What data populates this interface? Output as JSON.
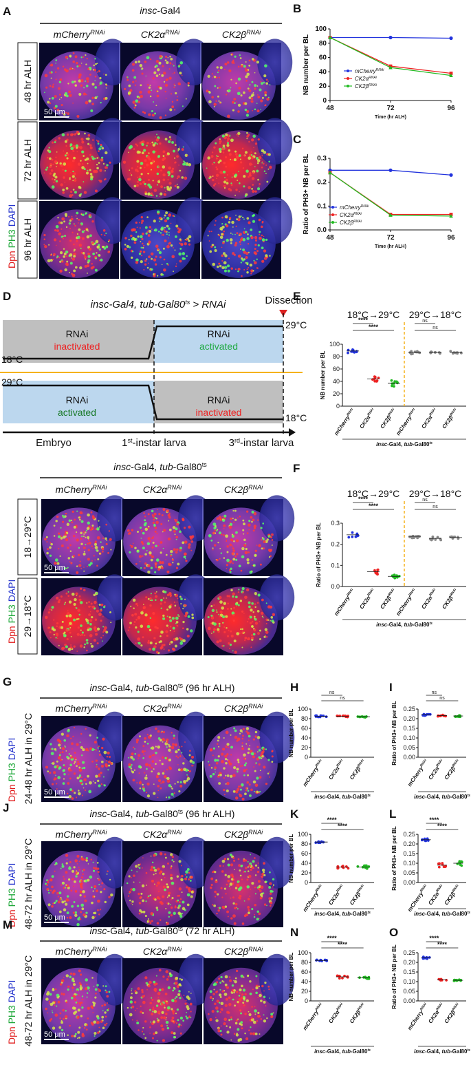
{
  "panels": {
    "A": {
      "letter": "A",
      "title_gene": "insc",
      "title_rest": "-Gal4",
      "columns": [
        {
          "gene": "mCherry",
          "sup": "RNAi"
        },
        {
          "gene": "CK2α",
          "sup": "RNAi"
        },
        {
          "gene": "CK2β",
          "sup": "RNAi"
        }
      ],
      "rows": [
        "48 hr ALH",
        "72 hr ALH",
        "96 hr ALH"
      ],
      "scale": "50 μm",
      "stain": {
        "dpn": "Dpn",
        "ph3": "PH3",
        "dapi": "DAPI"
      }
    },
    "B": {
      "letter": "B"
    },
    "C": {
      "letter": "C"
    },
    "D": {
      "letter": "D",
      "title": "insc-Gal4, tub-Gal80",
      "title_sup": "ts",
      "title_suffix": " > RNAi",
      "dissection": "Dissection",
      "t29": "29°C",
      "t18": "18°C",
      "rnai": "RNAi",
      "inactivated": "inactivated",
      "activated": "activated",
      "stages": {
        "embryo": "Embryo",
        "first_pre": "1",
        "first_sup": "st",
        "first_post": "-instar larva",
        "third_pre": "3",
        "third_sup": "rd",
        "third_post": "-instar larva"
      },
      "image_title_gene1": "insc",
      "image_title_mid": "-Gal4",
      "image_title_sep": ", ",
      "image_title_gene2": "tub",
      "image_title_rest": "-Gal80",
      "image_title_sup": "ts",
      "rows": [
        "18→29°C",
        "29→18°C"
      ],
      "scale": "50 μm"
    },
    "E": {
      "letter": "E"
    },
    "F": {
      "letter": "F"
    },
    "G": {
      "letter": "G",
      "title_gene1": "insc",
      "title_mid": "-Gal4, ",
      "title_gene2": "tub",
      "title_rest": "-Gal80",
      "title_sup": "ts",
      "title_tail": " (96 hr ALH)",
      "row": "24-48 hr ALH in 29°C",
      "scale": "50 μm"
    },
    "H": {
      "letter": "H"
    },
    "I": {
      "letter": "I"
    },
    "J": {
      "letter": "J",
      "title_gene1": "insc",
      "title_mid": "-Gal4, ",
      "title_gene2": "tub",
      "title_rest": "-Gal80",
      "title_sup": "ts",
      "title_tail": " (96 hr ALH)",
      "row": "48-72 hr ALH in 29°C",
      "scale": "50 μm"
    },
    "K": {
      "letter": "K"
    },
    "L": {
      "letter": "L"
    },
    "M": {
      "letter": "M",
      "title_gene1": "insc",
      "title_mid": "-Gal4, ",
      "title_gene2": "tub",
      "title_rest": "-Gal80",
      "title_sup": "ts",
      "title_tail": " (72 hr ALH)",
      "row": "48-72 hr ALH in 29°C",
      "scale": "50 μm"
    },
    "N": {
      "letter": "N"
    },
    "O": {
      "letter": "O"
    }
  },
  "colors": {
    "mcherry": "#2233dd",
    "ck2a": "#ee2222",
    "ck2b": "#22bb22",
    "shift": "#888888",
    "gray_bg": "#bfbfbf",
    "blue_bg": "#bcd7ee",
    "orange": "#f5b21b",
    "green_text": "#22aa44",
    "red_text": "#ee2222",
    "dark_green": "#1a7a2a"
  },
  "chart_data": [
    {
      "id": "B",
      "type": "line",
      "title": "",
      "xlabel": "Time (hr ALH)",
      "ylabel": "NB number per BL",
      "x": [
        48,
        72,
        96
      ],
      "xlim": [
        48,
        96
      ],
      "ylim": [
        0,
        100
      ],
      "xticks": [
        "48",
        "72",
        "96"
      ],
      "yticks": [
        "0",
        "20",
        "40",
        "60",
        "80",
        "100"
      ],
      "series": [
        {
          "name": "mCherry",
          "sup": "RNAi",
          "values": [
            88,
            88,
            87
          ]
        },
        {
          "name": "CK2α",
          "sup": "RNAi",
          "values": [
            88,
            48,
            38
          ]
        },
        {
          "name": "CK2β",
          "sup": "RNAi",
          "values": [
            88,
            46,
            35
          ]
        }
      ],
      "legend": "center-left"
    },
    {
      "id": "C",
      "type": "line",
      "title": "",
      "xlabel": "Time (hr ALH)",
      "ylabel": "Ratio of PH3+ NB per BL",
      "x": [
        48,
        72,
        96
      ],
      "xlim": [
        48,
        96
      ],
      "ylim": [
        0,
        0.3
      ],
      "xticks": [
        "48",
        "72",
        "96"
      ],
      "yticks": [
        "0.0",
        "0.1",
        "0.2",
        "0.3"
      ],
      "series": [
        {
          "name": "mCherry",
          "sup": "RNAi",
          "values": [
            0.25,
            0.25,
            0.23
          ]
        },
        {
          "name": "CK2α",
          "sup": "RNAi",
          "values": [
            0.24,
            0.065,
            0.065
          ]
        },
        {
          "name": "CK2β",
          "sup": "RNAi",
          "values": [
            0.24,
            0.062,
            0.058
          ]
        }
      ],
      "legend": "bottom-left"
    },
    {
      "id": "E",
      "type": "scatter",
      "ylabel": "NB number per BL",
      "ylim": [
        0,
        100
      ],
      "yticks": [
        "0",
        "20",
        "40",
        "60",
        "80",
        "100"
      ],
      "group_titles": [
        "18°C→29°C",
        "29°C→18°C"
      ],
      "categories": [
        "mCherry",
        "CK2α",
        "CK2β",
        "mCherry",
        "CK2α",
        "CK2β"
      ],
      "category_sup": "RNAi",
      "means": [
        89,
        44,
        37,
        87,
        87,
        87
      ],
      "spread": [
        3,
        4,
        5,
        3,
        2,
        2
      ],
      "brackets": [
        {
          "from": 0,
          "to": 1,
          "label": "****"
        },
        {
          "from": 0,
          "to": 2,
          "label": "****"
        },
        {
          "from": 3,
          "to": 4,
          "label": "ns"
        },
        {
          "from": 3,
          "to": 5,
          "label": "ns"
        }
      ],
      "footer_gene1": "insc",
      "footer_mid": "-Gal4, ",
      "footer_gene2": "tub",
      "footer_rest": "-Gal80",
      "footer_sup": "ts"
    },
    {
      "id": "F",
      "type": "scatter",
      "ylabel": "Ratio of PH3+ NB per BL",
      "ylim": [
        0,
        0.3
      ],
      "yticks": [
        "0.0",
        "0.1",
        "0.2",
        "0.3"
      ],
      "group_titles": [
        "18°C→29°C",
        "29°C→18°C"
      ],
      "categories": [
        "mCherry",
        "CK2α",
        "CK2β",
        "mCherry",
        "CK2α",
        "CK2β"
      ],
      "category_sup": "RNAi",
      "means": [
        0.245,
        0.07,
        0.048,
        0.238,
        0.228,
        0.232
      ],
      "spread": [
        0.012,
        0.012,
        0.008,
        0.008,
        0.008,
        0.005
      ],
      "brackets": [
        {
          "from": 0,
          "to": 1,
          "label": "****"
        },
        {
          "from": 0,
          "to": 2,
          "label": "****"
        },
        {
          "from": 3,
          "to": 4,
          "label": "ns"
        },
        {
          "from": 3,
          "to": 5,
          "label": "ns"
        }
      ],
      "footer_gene1": "insc",
      "footer_mid": "-Gal4, ",
      "footer_gene2": "tub",
      "footer_rest": "-Gal80",
      "footer_sup": "ts"
    },
    {
      "id": "H",
      "type": "scatter",
      "ylabel": "NB number per BL",
      "ylim": [
        0,
        100
      ],
      "yticks": [
        "0",
        "20",
        "40",
        "60",
        "80",
        "100"
      ],
      "categories": [
        "mCherry",
        "CK2α",
        "CK2β"
      ],
      "category_sup": "RNAi",
      "means": [
        85,
        85,
        84
      ],
      "spread": [
        1.5,
        1.5,
        1.2
      ],
      "brackets": [
        {
          "from": 0,
          "to": 1,
          "label": "ns"
        },
        {
          "from": 0,
          "to": 2,
          "label": "ns"
        }
      ],
      "footer_gene1": "insc",
      "footer_mid": "-Gal4, ",
      "footer_gene2": "tub",
      "footer_rest": "-Gal80",
      "footer_sup": "ts"
    },
    {
      "id": "I",
      "type": "scatter",
      "ylabel": "Ratio of PH3+ NB per BL",
      "ylim": [
        0,
        0.25
      ],
      "yticks": [
        "0.00",
        "0.05",
        "0.10",
        "0.15",
        "0.20",
        "0.25"
      ],
      "categories": [
        "mCherry",
        "CK2α",
        "CK2β"
      ],
      "category_sup": "RNAi",
      "means": [
        0.221,
        0.216,
        0.214
      ],
      "spread": [
        0.005,
        0.004,
        0.004
      ],
      "brackets": [
        {
          "from": 0,
          "to": 1,
          "label": "ns"
        },
        {
          "from": 0,
          "to": 2,
          "label": "ns"
        }
      ],
      "footer_gene1": "insc",
      "footer_mid": "-Gal4, ",
      "footer_gene2": "tub",
      "footer_rest": "-Gal80",
      "footer_sup": "ts"
    },
    {
      "id": "K",
      "type": "scatter",
      "ylabel": "NB number per BL",
      "ylim": [
        0,
        100
      ],
      "yticks": [
        "0",
        "20",
        "40",
        "60",
        "80",
        "100"
      ],
      "categories": [
        "mCherry",
        "CK2α",
        "CK2β"
      ],
      "category_sup": "RNAi",
      "means": [
        84,
        32,
        32
      ],
      "spread": [
        1.5,
        2.5,
        3
      ],
      "brackets": [
        {
          "from": 0,
          "to": 1,
          "label": "****"
        },
        {
          "from": 0,
          "to": 2,
          "label": "****"
        }
      ],
      "footer_gene1": "insc",
      "footer_mid": "-Gal4, ",
      "footer_gene2": "tub",
      "footer_rest": "-Gal80",
      "footer_sup": "ts"
    },
    {
      "id": "L",
      "type": "scatter",
      "ylabel": "Ratio of PH3+ NB per BL",
      "ylim": [
        0,
        0.25
      ],
      "yticks": [
        "0.00",
        "0.05",
        "0.10",
        "0.15",
        "0.20",
        "0.25"
      ],
      "categories": [
        "mCherry",
        "CK2α",
        "CK2β"
      ],
      "category_sup": "RNAi",
      "means": [
        0.222,
        0.09,
        0.1
      ],
      "spread": [
        0.006,
        0.01,
        0.012
      ],
      "brackets": [
        {
          "from": 0,
          "to": 1,
          "label": "****"
        },
        {
          "from": 0,
          "to": 2,
          "label": "****"
        }
      ],
      "footer_gene1": "insc",
      "footer_mid": "-Gal4, ",
      "footer_gene2": "tub",
      "footer_rest": "-Gal80",
      "footer_sup": "ts"
    },
    {
      "id": "N",
      "type": "scatter",
      "ylabel": "NB number per BL",
      "ylim": [
        0,
        100
      ],
      "yticks": [
        "0",
        "20",
        "40",
        "60",
        "80",
        "100"
      ],
      "categories": [
        "mCherry",
        "CK2α",
        "CK2β"
      ],
      "category_sup": "RNAi",
      "means": [
        84,
        50,
        48
      ],
      "spread": [
        1.2,
        3,
        2
      ],
      "brackets": [
        {
          "from": 0,
          "to": 1,
          "label": "****"
        },
        {
          "from": 0,
          "to": 2,
          "label": "****"
        }
      ],
      "footer_gene1": "insc",
      "footer_mid": "-Gal4, ",
      "footer_gene2": "tub",
      "footer_rest": "-Gal80",
      "footer_sup": "ts"
    },
    {
      "id": "O",
      "type": "scatter",
      "ylabel": "Ratio of PH3+ NB per BL",
      "ylim": [
        0,
        0.25
      ],
      "yticks": [
        "0.00",
        "0.05",
        "0.10",
        "0.15",
        "0.20",
        "0.25"
      ],
      "categories": [
        "mCherry",
        "CK2α",
        "CK2β"
      ],
      "category_sup": "RNAi",
      "means": [
        0.224,
        0.11,
        0.107
      ],
      "spread": [
        0.005,
        0.003,
        0.003
      ],
      "brackets": [
        {
          "from": 0,
          "to": 1,
          "label": "****"
        },
        {
          "from": 0,
          "to": 2,
          "label": "****"
        }
      ],
      "footer_gene1": "insc",
      "footer_mid": "-Gal4, ",
      "footer_gene2": "tub",
      "footer_rest": "-Gal80",
      "footer_sup": "ts"
    }
  ]
}
